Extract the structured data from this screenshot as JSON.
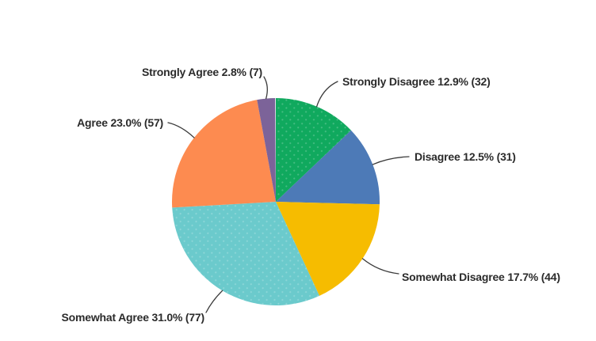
{
  "chart_data": {
    "type": "pie",
    "background": "#FFFFFF",
    "text_color": "#2B2B2B",
    "leader_line_color": "#3A3A3A",
    "direction": "clockwise",
    "start_angle_deg": 0,
    "slices": [
      {
        "category": "Strongly Disagree",
        "percent": 12.9,
        "count": 32,
        "label": "Strongly Disagree 12.9% (32)",
        "color": "#10A95E",
        "dotted": true
      },
      {
        "category": "Disagree",
        "percent": 12.5,
        "count": 31,
        "label": "Disagree 12.5% (31)",
        "color": "#4D7AB7",
        "dotted": false
      },
      {
        "category": "Somewhat Disagree",
        "percent": 17.7,
        "count": 44,
        "label": "Somewhat Disagree 17.7% (44)",
        "color": "#F6BC00",
        "dotted": false
      },
      {
        "category": "Somewhat Agree",
        "percent": 31.0,
        "count": 77,
        "label": "Somewhat Agree 31.0% (77)",
        "color": "#6BCACC",
        "dotted": true
      },
      {
        "category": "Agree",
        "percent": 23.0,
        "count": 57,
        "label": "Agree 23.0% (57)",
        "color": "#FD8B50",
        "dotted": false
      },
      {
        "category": "Strongly Agree",
        "percent": 2.8,
        "count": 7,
        "label": "Strongly Agree 2.8% (7)",
        "color": "#7C6399",
        "dotted": false
      }
    ]
  }
}
